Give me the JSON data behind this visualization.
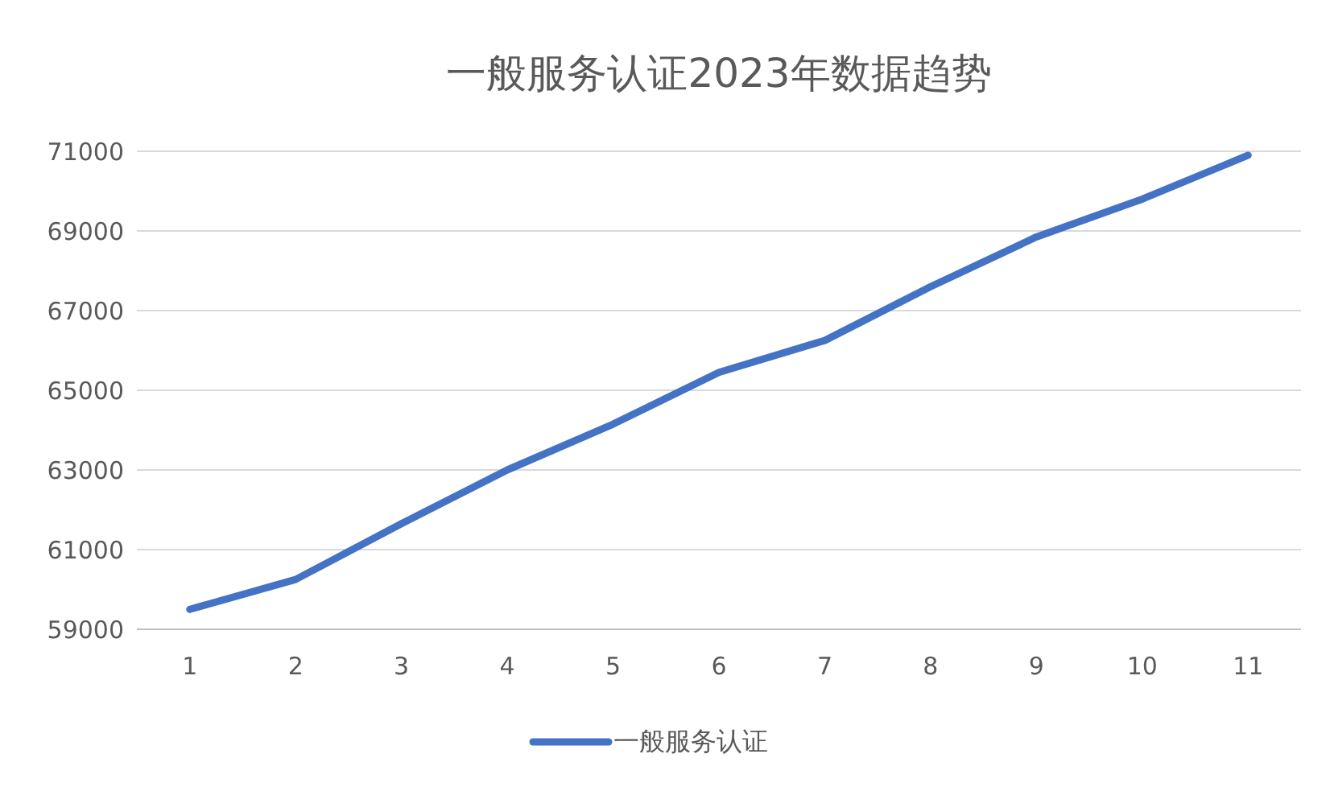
{
  "chart_data": {
    "type": "line",
    "title": "一般服务认证2023年数据趋势",
    "categories": [
      "1",
      "2",
      "3",
      "4",
      "5",
      "6",
      "7",
      "8",
      "9",
      "10",
      "11"
    ],
    "series": [
      {
        "name": "一般服务认证",
        "color": "#4472c4",
        "values": [
          59500,
          60250,
          61650,
          63000,
          64150,
          65450,
          66250,
          67600,
          68850,
          69800,
          70900
        ]
      }
    ],
    "ylim": [
      59000,
      71000
    ],
    "yticks": [
      59000,
      61000,
      63000,
      65000,
      67000,
      69000,
      71000
    ],
    "grid": "y",
    "legend": "bottom",
    "marker": "none",
    "line_style": "solid"
  }
}
